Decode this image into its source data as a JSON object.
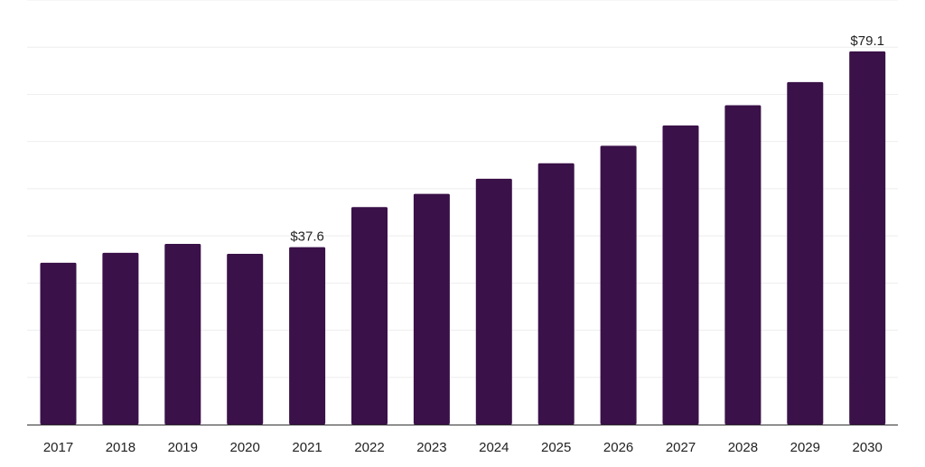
{
  "chart_data": {
    "type": "bar",
    "categories": [
      "2017",
      "2018",
      "2019",
      "2020",
      "2021",
      "2022",
      "2023",
      "2024",
      "2025",
      "2026",
      "2027",
      "2028",
      "2029",
      "2030"
    ],
    "values": [
      34.3,
      36.4,
      38.3,
      36.2,
      37.6,
      46.1,
      48.9,
      52.1,
      55.4,
      59.1,
      63.4,
      67.7,
      72.6,
      79.1
    ],
    "data_labels": [
      {
        "category": "2021",
        "text": "$37.6"
      },
      {
        "category": "2030",
        "text": "$79.1"
      }
    ],
    "title": "",
    "xlabel": "",
    "ylabel": "",
    "ylim": [
      0,
      90
    ],
    "grid": true,
    "colors": {
      "bar": "#3a1148",
      "grid": "#eeeeee",
      "axis": "#333333",
      "text": "#222222"
    }
  }
}
